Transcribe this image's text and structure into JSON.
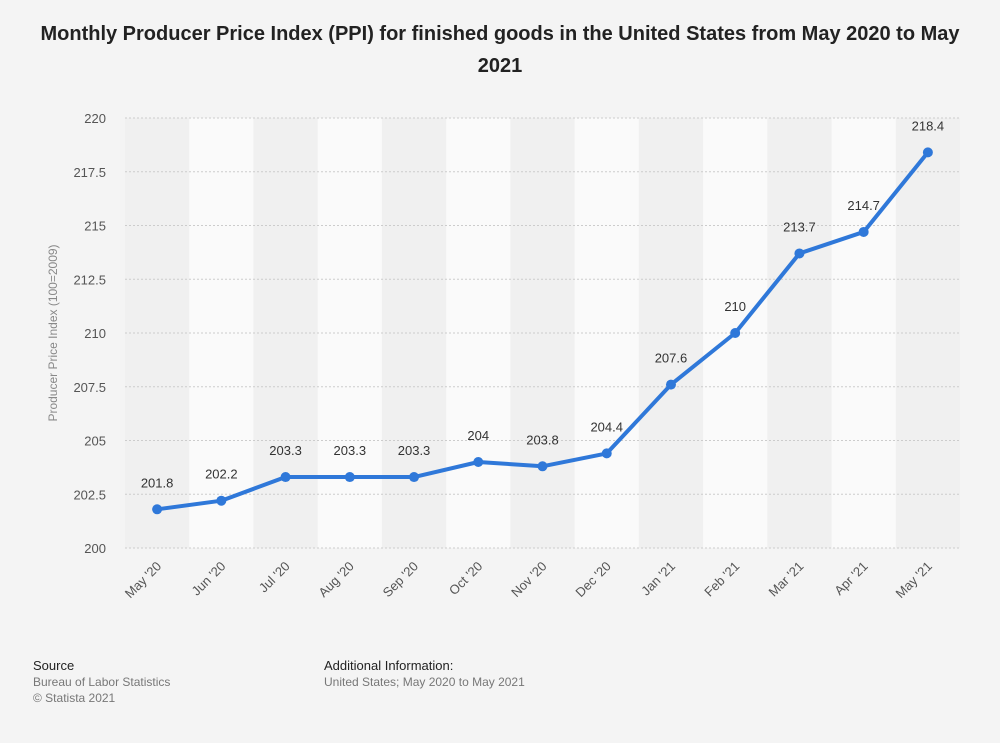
{
  "title": "Monthly Producer Price Index (PPI) for finished goods in the United States from May 2020 to May 2021",
  "chart_data": {
    "type": "line",
    "title": "Monthly Producer Price Index (PPI) for finished goods in the United States from May 2020 to May 2021",
    "xlabel": "",
    "ylabel": "Producer Price Index (100=2009)",
    "categories": [
      "May '20",
      "Jun '20",
      "Jul '20",
      "Aug '20",
      "Sep '20",
      "Oct '20",
      "Nov '20",
      "Dec '20",
      "Jan '21",
      "Feb '21",
      "Mar '21",
      "Apr '21",
      "May '21"
    ],
    "values": [
      201.8,
      202.2,
      203.3,
      203.3,
      203.3,
      204,
      203.8,
      204.4,
      207.6,
      210,
      213.7,
      214.7,
      218.4
    ],
    "data_labels": [
      "201.8",
      "202.2",
      "203.3",
      "203.3",
      "203.3",
      "204",
      "203.8",
      "204.4",
      "207.6",
      "210",
      "213.7",
      "214.7",
      "218.4"
    ],
    "ylim": [
      200,
      220
    ],
    "yticks": [
      200,
      202.5,
      205,
      207.5,
      210,
      212.5,
      215,
      217.5,
      220
    ],
    "ytick_labels": [
      "200",
      "202.5",
      "205",
      "207.5",
      "210",
      "212.5",
      "215",
      "217.5",
      "220"
    ],
    "grid": true,
    "legend": "none",
    "colors": {
      "line": "#2f78d9",
      "grid": "#cccccc",
      "band": "#fafafa"
    }
  },
  "footer": {
    "source_heading": "Source",
    "source_lines": [
      "Bureau of Labor Statistics",
      "© Statista 2021"
    ],
    "info_heading": "Additional Information:",
    "info_lines": [
      "United States; May 2020 to May 2021"
    ]
  }
}
